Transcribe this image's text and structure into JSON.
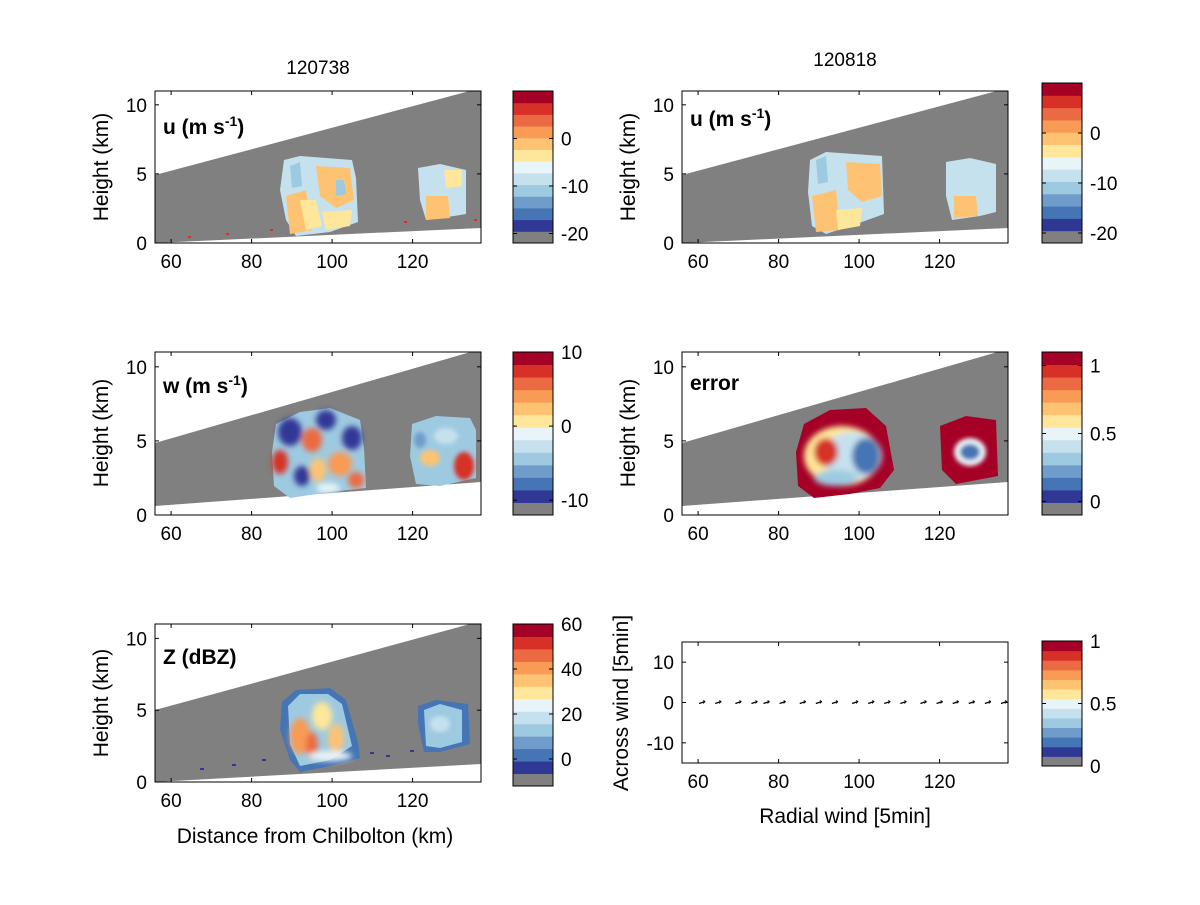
{
  "titles": {
    "left": "120738",
    "right": "120818"
  },
  "labels": {
    "height": "Height (km)",
    "distance": "Distance from Chilbolton (km)",
    "across_wind": "Across wind [5min]",
    "radial_wind": "Radial wind [5min]"
  },
  "colors": {
    "background_fill": "#808080",
    "palette": [
      "#303896",
      "#4575b4",
      "#6f9ccb",
      "#9ecae1",
      "#c6e1ee",
      "#e7f4f8",
      "#fee79a",
      "#fdc373",
      "#f99a55",
      "#ec6a43",
      "#d73027",
      "#a50026"
    ],
    "missing": "#808080"
  },
  "chart_data": [
    {
      "panel": "top-left",
      "type": "heatmap",
      "inset_label": "u (m s-1)",
      "xlim": [
        56,
        137
      ],
      "ylim": [
        0,
        11
      ],
      "xticks": [
        "60",
        "80",
        "100",
        "120"
      ],
      "yticks": [
        "0",
        "5",
        "10"
      ],
      "colorbar": {
        "range": [
          -22,
          10
        ],
        "ticks": [
          "0",
          "-10",
          "-20"
        ],
        "tick_values": [
          0,
          -10,
          -20
        ]
      }
    },
    {
      "panel": "top-right",
      "type": "heatmap",
      "inset_label": "u (m s-1)",
      "xlim": [
        56,
        137
      ],
      "ylim": [
        0,
        11
      ],
      "xticks": [
        "60",
        "80",
        "100",
        "120"
      ],
      "yticks": [
        "0",
        "5",
        "10"
      ],
      "colorbar": {
        "range": [
          -22,
          10
        ],
        "ticks": [
          "0",
          "-10",
          "-20"
        ],
        "tick_values": [
          0,
          -10,
          -20
        ]
      }
    },
    {
      "panel": "middle-left",
      "type": "heatmap",
      "inset_label": "w (m s-1)",
      "xlim": [
        56,
        137
      ],
      "ylim": [
        0,
        11
      ],
      "xticks": [
        "60",
        "80",
        "100",
        "120"
      ],
      "yticks": [
        "0",
        "5",
        "10"
      ],
      "colorbar": {
        "range": [
          -12,
          10
        ],
        "ticks": [
          "10",
          "0",
          "-10"
        ],
        "tick_values": [
          10,
          0,
          -10
        ]
      }
    },
    {
      "panel": "middle-right",
      "type": "heatmap",
      "inset_label": "error",
      "xlim": [
        56,
        137
      ],
      "ylim": [
        0,
        11
      ],
      "xticks": [
        "60",
        "80",
        "100",
        "120"
      ],
      "yticks": [
        "0",
        "5",
        "10"
      ],
      "colorbar": {
        "range": [
          -0.1,
          1.1
        ],
        "ticks": [
          "1",
          "0.5",
          "0"
        ],
        "tick_values": [
          1,
          0.5,
          0
        ]
      }
    },
    {
      "panel": "bottom-left",
      "type": "heatmap",
      "inset_label": "Z (dBZ)",
      "xlim": [
        56,
        137
      ],
      "ylim": [
        0,
        11
      ],
      "xticks": [
        "60",
        "80",
        "100",
        "120"
      ],
      "yticks": [
        "0",
        "5",
        "10"
      ],
      "colorbar": {
        "range": [
          -12,
          60
        ],
        "ticks": [
          "60",
          "40",
          "20",
          "0"
        ],
        "tick_values": [
          60,
          40,
          20,
          0
        ]
      }
    },
    {
      "panel": "bottom-right",
      "type": "scatter",
      "xlim": [
        56,
        137
      ],
      "ylim": [
        -15,
        15
      ],
      "xticks": [
        "60",
        "80",
        "100",
        "120"
      ],
      "yticks": [
        "10",
        "0",
        "-10"
      ],
      "x": [
        61,
        65,
        70,
        74,
        77,
        81,
        86,
        90,
        94,
        99,
        103,
        107,
        111,
        116,
        120,
        124,
        128,
        132,
        136
      ],
      "y": [
        0,
        0,
        0,
        0,
        0,
        0,
        0,
        0,
        0,
        0,
        0,
        0,
        0,
        0,
        0,
        0,
        0,
        0,
        0
      ],
      "colorbar": {
        "range": [
          0,
          1
        ],
        "ticks": [
          "1",
          "0.5",
          "0"
        ],
        "tick_values": [
          1,
          0.5,
          0
        ]
      }
    }
  ]
}
